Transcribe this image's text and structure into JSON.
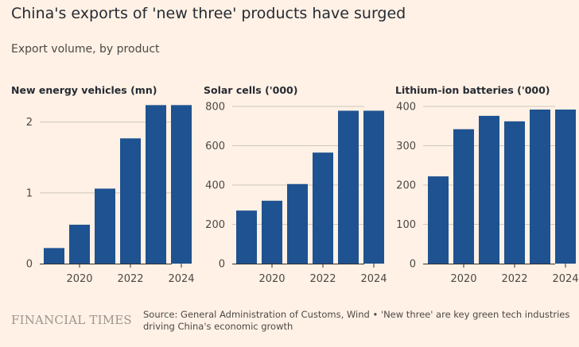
{
  "title": "China's exports of 'new three' products have surged",
  "subtitle": "Export volume, by product",
  "colors": {
    "background": "#FFF1E5",
    "bar": "#1F5290",
    "grid": "#CEC6BE",
    "axis": "#33302E"
  },
  "chart_data": [
    {
      "type": "bar",
      "title": "New energy vehicles (mn)",
      "x": [
        2019,
        2020,
        2021,
        2022,
        2023,
        2024
      ],
      "values": [
        0.22,
        0.55,
        1.06,
        1.77,
        2.24,
        2.24
      ],
      "xticks": [
        "2020",
        "2022",
        "2024"
      ],
      "yticks": [
        "0",
        "1",
        "2"
      ],
      "ylim": [
        0,
        2.3
      ],
      "grid": true
    },
    {
      "type": "bar",
      "title": "Solar cells ('000)",
      "x": [
        2019,
        2020,
        2021,
        2022,
        2023,
        2024
      ],
      "values": [
        270,
        320,
        405,
        565,
        778,
        778
      ],
      "xticks": [
        "2020",
        "2022",
        "2024"
      ],
      "yticks": [
        "0",
        "200",
        "400",
        "600",
        "800"
      ],
      "ylim": [
        0,
        800
      ],
      "grid": true
    },
    {
      "type": "bar",
      "title": "Lithium-ion batteries ('000)",
      "x": [
        2019,
        2020,
        2021,
        2022,
        2023,
        2024
      ],
      "values": [
        222,
        342,
        376,
        362,
        392,
        392
      ],
      "xticks": [
        "2020",
        "2022",
        "2024"
      ],
      "yticks": [
        "0",
        "100",
        "200",
        "300",
        "400"
      ],
      "ylim": [
        0,
        400
      ],
      "grid": true
    }
  ],
  "footer": {
    "brand": "FINANCIAL TIMES",
    "source": "Source: General Administration of Customs, Wind • 'New three' are key green tech industries driving China's economic growth"
  }
}
